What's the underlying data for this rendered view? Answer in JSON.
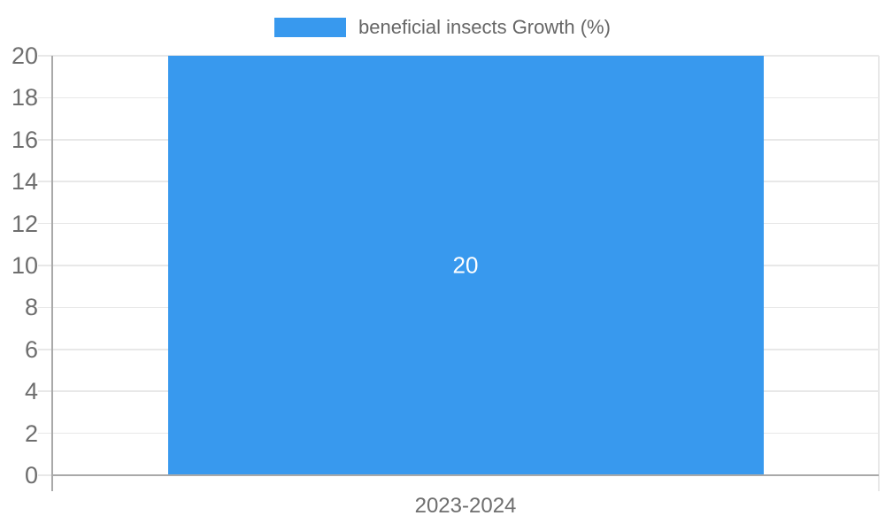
{
  "chart_data": {
    "type": "bar",
    "categories": [
      "2023-2024"
    ],
    "series": [
      {
        "name": "beneficial insects Growth (%)",
        "values": [
          20
        ]
      }
    ],
    "bar_value_labels": [
      "20"
    ],
    "ylim": [
      0,
      20
    ],
    "yticks": [
      0,
      2,
      4,
      6,
      8,
      10,
      12,
      14,
      16,
      18,
      20
    ],
    "grid": true,
    "legend_position": "top"
  },
  "colors": {
    "bar": "#3899ee",
    "grid": "#e8e8e8",
    "axis": "#a9a9a9",
    "tick_text": "#6e6e6e",
    "legend_text": "#666666",
    "bar_label_text": "#ffffff",
    "background": "#ffffff"
  }
}
